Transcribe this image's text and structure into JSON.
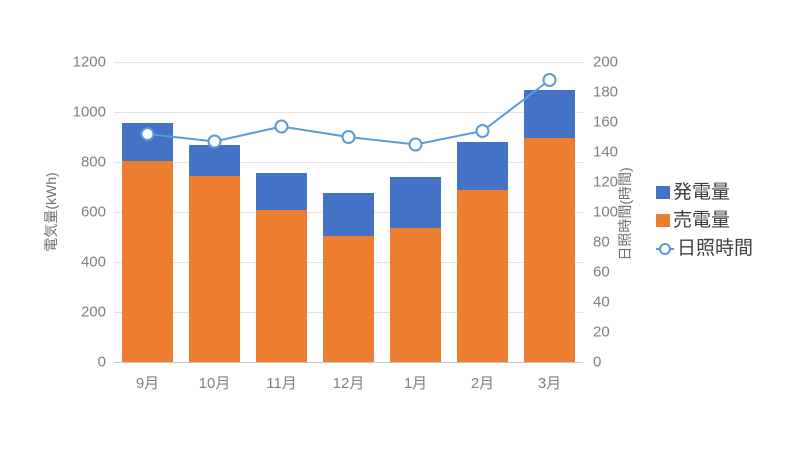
{
  "chart_data": {
    "type": "combo",
    "title": "",
    "categories": [
      "9月",
      "10月",
      "11月",
      "12月",
      "1月",
      "2月",
      "3月"
    ],
    "series": [
      {
        "name": "発電量",
        "type": "bar",
        "axis": "left",
        "stack_layer": "top",
        "color": "#4472C4",
        "values": [
          150,
          125,
          145,
          170,
          205,
          190,
          195
        ]
      },
      {
        "name": "売電量",
        "type": "bar",
        "axis": "left",
        "stack_layer": "bottom",
        "color": "#ED7D31",
        "values": [
          805,
          745,
          610,
          505,
          535,
          690,
          895
        ]
      },
      {
        "name": "日照時間",
        "type": "line",
        "axis": "right",
        "color": "#5B9BD5",
        "marker": "circle",
        "marker_fill": "#FFFFFF",
        "values": [
          152,
          147,
          157,
          150,
          145,
          154,
          188
        ]
      }
    ],
    "stacked_bar_totals_kwh": [
      955,
      870,
      755,
      675,
      740,
      880,
      1090
    ],
    "left_axis": {
      "title": "電気量(kWh)",
      "min": 0,
      "max": 1200,
      "step": 200
    },
    "right_axis": {
      "title": "日照時間(時間)",
      "min": 0,
      "max": 200,
      "step": 20
    },
    "legend": {
      "position": "right",
      "entries": [
        "発電量",
        "売電量",
        "日照時間"
      ]
    },
    "grid": true,
    "styles": {
      "background": "#FFFFFF",
      "grid_color": "#E3E3E3",
      "axis_line_color": "#C8C8C8",
      "tick_label_color": "#808080",
      "axis_title_color": "#6E6E6E",
      "legend_text_color": "#404040"
    }
  }
}
